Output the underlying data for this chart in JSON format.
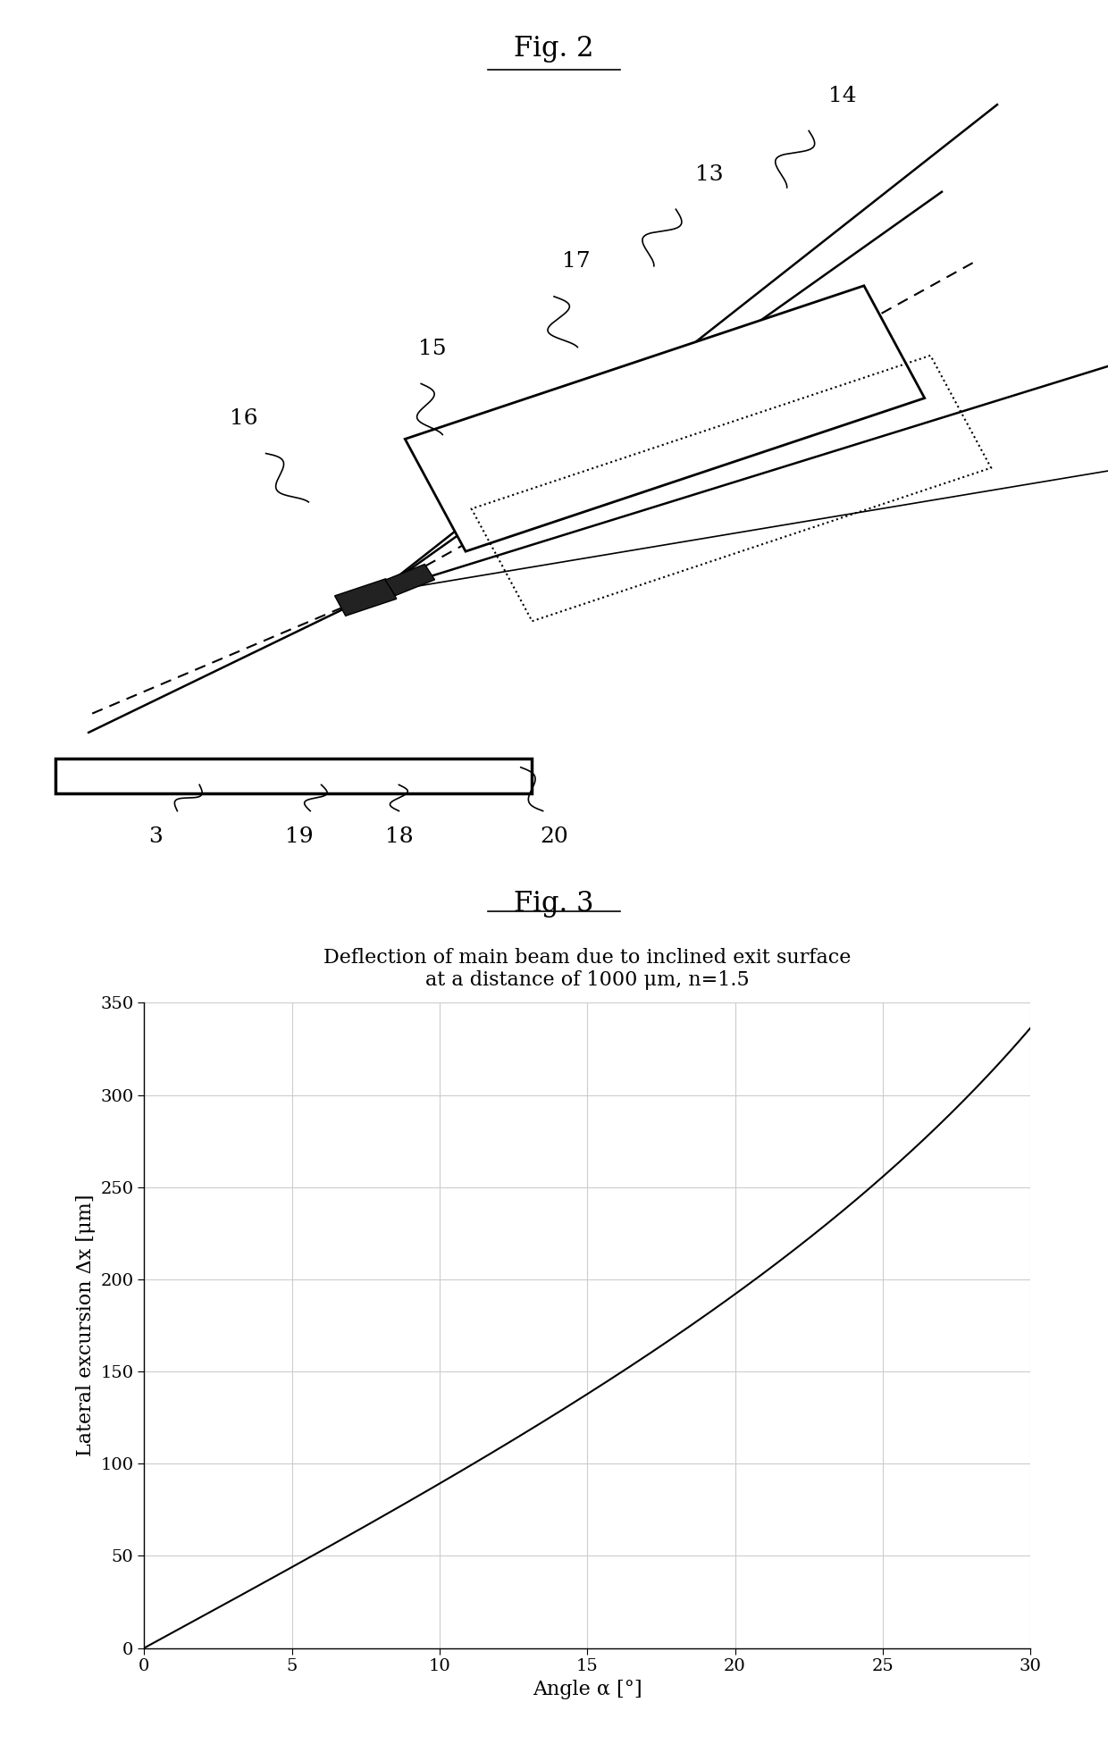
{
  "fig2_title": "Fig. 2",
  "fig3_title": "Fig. 3",
  "chart_title_line1": "Deflection of main beam due to inclined exit surface",
  "chart_title_line2": "at a distance of 1000 μm, n=1.5",
  "xlabel": "Angle α [°]",
  "ylabel": "Lateral excursion Δx [μm]",
  "xlim": [
    0,
    30
  ],
  "ylim": [
    0,
    350
  ],
  "xticks": [
    0,
    5,
    10,
    15,
    20,
    25,
    30
  ],
  "yticks": [
    0,
    50,
    100,
    150,
    200,
    250,
    300,
    350
  ],
  "grid_color": "#cccccc",
  "line_color": "#000000",
  "background_color": "#ffffff"
}
